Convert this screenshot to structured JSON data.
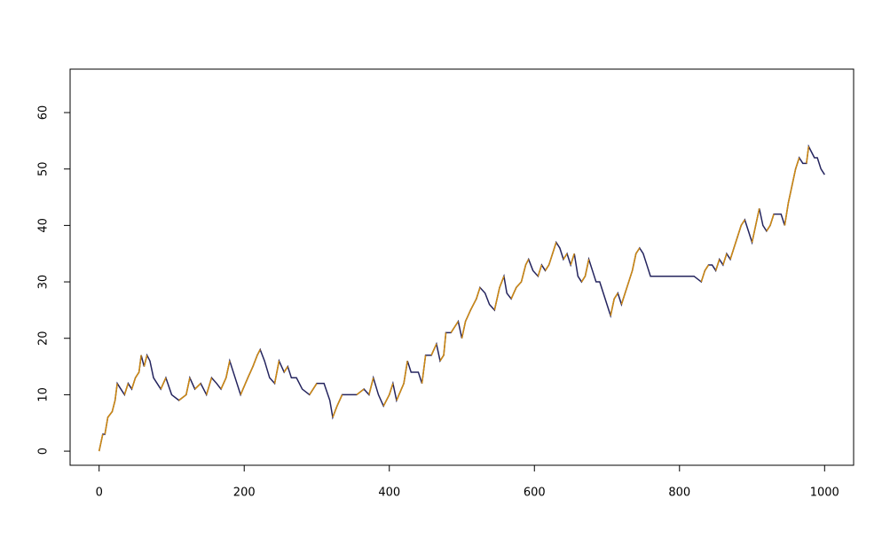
{
  "chart_data": {
    "type": "line",
    "x": [
      0,
      5,
      8,
      12,
      18,
      22,
      25,
      30,
      35,
      40,
      45,
      50,
      55,
      58,
      62,
      66,
      70,
      75,
      80,
      85,
      92,
      100,
      110,
      120,
      125,
      132,
      140,
      148,
      155,
      162,
      168,
      175,
      180,
      185,
      190,
      195,
      205,
      212,
      218,
      222,
      228,
      235,
      242,
      248,
      255,
      260,
      265,
      272,
      280,
      290,
      300,
      310,
      318,
      322,
      328,
      335,
      345,
      355,
      365,
      372,
      378,
      385,
      392,
      400,
      405,
      410,
      420,
      425,
      430,
      440,
      445,
      450,
      458,
      465,
      470,
      475,
      478,
      485,
      495,
      500,
      505,
      512,
      520,
      525,
      532,
      538,
      545,
      552,
      558,
      562,
      568,
      575,
      582,
      588,
      592,
      598,
      605,
      610,
      615,
      620,
      625,
      630,
      635,
      640,
      645,
      650,
      655,
      660,
      665,
      670,
      675,
      680,
      685,
      690,
      695,
      700,
      705,
      710,
      715,
      720,
      725,
      730,
      735,
      740,
      745,
      750,
      755,
      760,
      770,
      780,
      790,
      800,
      810,
      820,
      830,
      835,
      840,
      845,
      850,
      855,
      860,
      865,
      870,
      875,
      880,
      885,
      890,
      895,
      900,
      905,
      910,
      915,
      920,
      925,
      930,
      935,
      940,
      945,
      950,
      955,
      960,
      965,
      970,
      975,
      978,
      982,
      986,
      990,
      995,
      1000
    ],
    "values": [
      0,
      3,
      3,
      6,
      7,
      9,
      12,
      11,
      10,
      12,
      11,
      13,
      14,
      17,
      15,
      17,
      16,
      13,
      12,
      11,
      13,
      10,
      9,
      10,
      13,
      11,
      12,
      10,
      13,
      12,
      11,
      13,
      16,
      14,
      12,
      10,
      13,
      15,
      17,
      18,
      16,
      13,
      12,
      16,
      14,
      15,
      13,
      13,
      11,
      10,
      12,
      12,
      9,
      6,
      8,
      10,
      10,
      10,
      11,
      10,
      13,
      10,
      8,
      10,
      12,
      9,
      12,
      16,
      14,
      14,
      12,
      17,
      17,
      19,
      16,
      17,
      21,
      21,
      23,
      20,
      23,
      25,
      27,
      29,
      28,
      26,
      25,
      29,
      31,
      28,
      27,
      29,
      30,
      33,
      34,
      32,
      31,
      33,
      32,
      33,
      35,
      37,
      36,
      34,
      35,
      33,
      35,
      31,
      30,
      31,
      34,
      32,
      30,
      30,
      28,
      26,
      24,
      27,
      28,
      26,
      28,
      30,
      32,
      35,
      36,
      35,
      33,
      31,
      31,
      31,
      31,
      31,
      31,
      31,
      30,
      32,
      33,
      33,
      32,
      34,
      33,
      35,
      34,
      36,
      38,
      40,
      41,
      39,
      37,
      40,
      43,
      40,
      39,
      40,
      42,
      42,
      42,
      40,
      44,
      47,
      50,
      52,
      51,
      51,
      54,
      53,
      52,
      52,
      50,
      49
    ],
    "color_up": "#d08a10",
    "color_down": "#24245e",
    "xlim": [
      -40,
      1040
    ],
    "ylim": [
      -2.5,
      67.7
    ],
    "xticks": [
      0,
      200,
      400,
      600,
      800,
      1000
    ],
    "yticks": [
      0,
      10,
      20,
      30,
      40,
      50,
      60
    ]
  }
}
